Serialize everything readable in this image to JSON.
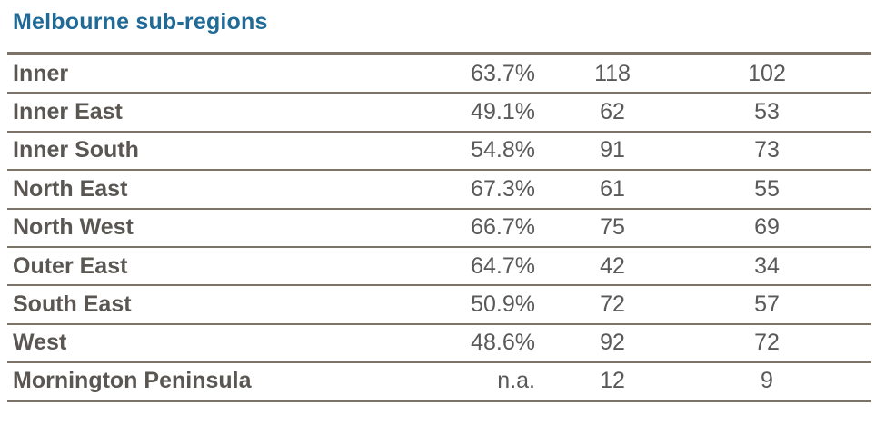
{
  "title": "Melbourne sub-regions",
  "rows": [
    {
      "name": "Inner",
      "pct": "63.7%",
      "a": "118",
      "b": "102"
    },
    {
      "name": "Inner East",
      "pct": "49.1%",
      "a": "62",
      "b": "53"
    },
    {
      "name": "Inner South",
      "pct": "54.8%",
      "a": "91",
      "b": "73"
    },
    {
      "name": "North East",
      "pct": "67.3%",
      "a": "61",
      "b": "55"
    },
    {
      "name": "North West",
      "pct": "66.7%",
      "a": "75",
      "b": "69"
    },
    {
      "name": "Outer East",
      "pct": "64.7%",
      "a": "42",
      "b": "34"
    },
    {
      "name": "South East",
      "pct": "50.9%",
      "a": "72",
      "b": "57"
    },
    {
      "name": "West",
      "pct": "48.6%",
      "a": "92",
      "b": "72"
    },
    {
      "name": "Mornington Peninsula",
      "pct": "n.a.",
      "a": "12",
      "b": "9"
    }
  ]
}
